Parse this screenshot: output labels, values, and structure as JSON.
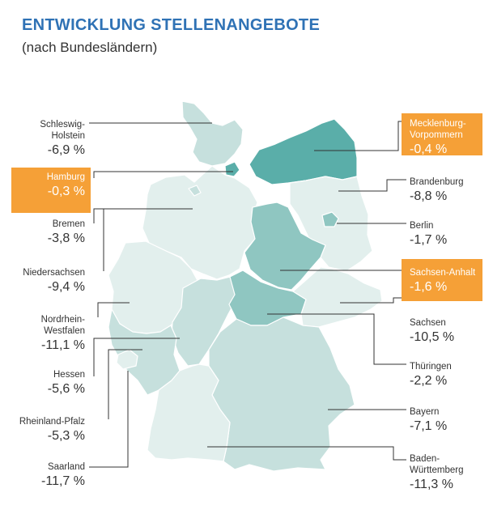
{
  "title": "ENTWICKLUNG STELLENANGEBOTE",
  "subtitle": "(nach Bundesländern)",
  "colors": {
    "title": "#2f72b5",
    "highlight_box": "#f5a037",
    "scale_light": "#e2efed",
    "scale_mid": "#a9d3cf",
    "scale_dark": "#5aaea9",
    "border": "#ffffff",
    "leader": "#333333"
  },
  "chart_data": {
    "type": "choropleth-map",
    "title": "ENTWICKLUNG STELLENANGEBOTE",
    "subtitle": "(nach Bundesländern)",
    "unit": "%",
    "highlighted": [
      "Hamburg",
      "Mecklenburg-Vorpommern",
      "Sachsen-Anhalt"
    ],
    "regions": [
      {
        "id": "sh",
        "label": "Schleswig-\nHolstein",
        "display": "-6,9 %",
        "value": -6.9
      },
      {
        "id": "hh",
        "label": "Hamburg",
        "display": "-0,3 %",
        "value": -0.3
      },
      {
        "id": "hb",
        "label": "Bremen",
        "display": "-3,8 %",
        "value": -3.8
      },
      {
        "id": "ni",
        "label": "Niedersachsen",
        "display": "-9,4 %",
        "value": -9.4
      },
      {
        "id": "nw",
        "label": "Nordrhein-\nWestfalen",
        "display": "-11,1 %",
        "value": -11.1
      },
      {
        "id": "he",
        "label": "Hessen",
        "display": "-5,6 %",
        "value": -5.6
      },
      {
        "id": "rp",
        "label": "Rheinland-Pfalz",
        "display": "-5,3 %",
        "value": -5.3
      },
      {
        "id": "sl",
        "label": "Saarland",
        "display": "-11,7 %",
        "value": -11.7
      },
      {
        "id": "mv",
        "label": "Mecklenburg-\nVorpommern",
        "display": "-0,4 %",
        "value": -0.4
      },
      {
        "id": "bb",
        "label": "Brandenburg",
        "display": "-8,8 %",
        "value": -8.8
      },
      {
        "id": "be",
        "label": "Berlin",
        "display": "-1,7 %",
        "value": -1.7
      },
      {
        "id": "st",
        "label": "Sachsen-Anhalt",
        "display": "-1,6 %",
        "value": -1.6
      },
      {
        "id": "sn",
        "label": "Sachsen",
        "display": "-10,5 %",
        "value": -10.5
      },
      {
        "id": "th",
        "label": "Thüringen",
        "display": "-2,2 %",
        "value": -2.2
      },
      {
        "id": "by",
        "label": "Bayern",
        "display": "-7,1 %",
        "value": -7.1
      },
      {
        "id": "bw",
        "label": "Baden-\nWürttemberg",
        "display": "-11,3 %",
        "value": -11.3
      }
    ]
  }
}
